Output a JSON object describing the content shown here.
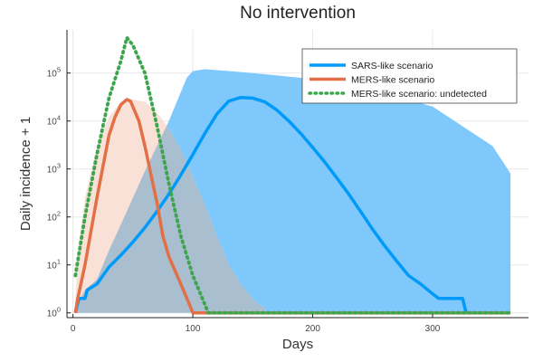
{
  "chart_data": {
    "type": "line",
    "title": "No intervention",
    "xlabel": "Days",
    "ylabel": "Daily incidence + 1",
    "xlim": [
      -5,
      380
    ],
    "ylim_log10": [
      -0.1,
      5.9
    ],
    "yscale": "log",
    "x_ticks": [
      0,
      100,
      200,
      300
    ],
    "x_tick_labels": [
      "0",
      "100",
      "200",
      "300"
    ],
    "y_ticks": [
      1,
      10,
      100,
      1000,
      10000,
      100000
    ],
    "y_tick_labels": [
      {
        "base": "10",
        "exp": "0"
      },
      {
        "base": "10",
        "exp": "1"
      },
      {
        "base": "10",
        "exp": "2"
      },
      {
        "base": "10",
        "exp": "3"
      },
      {
        "base": "10",
        "exp": "4"
      },
      {
        "base": "10",
        "exp": "5"
      }
    ],
    "grid": true,
    "legend_position": "top-right",
    "bands": [
      {
        "series": "SARS-like scenario",
        "color": "#7ec8fb",
        "upper": [
          [
            2,
            1.3
          ],
          [
            10,
            3
          ],
          [
            20,
            5
          ],
          [
            30,
            20
          ],
          [
            40,
            70
          ],
          [
            50,
            250
          ],
          [
            60,
            900
          ],
          [
            70,
            3000
          ],
          [
            80,
            10000
          ],
          [
            90,
            40000
          ],
          [
            95,
            80000
          ],
          [
            100,
            110000
          ],
          [
            110,
            120000
          ],
          [
            130,
            110000
          ],
          [
            150,
            100000
          ],
          [
            200,
            75000
          ],
          [
            250,
            45000
          ],
          [
            300,
            20000
          ],
          [
            350,
            3000
          ],
          [
            365,
            800
          ]
        ],
        "lower": [
          [
            2,
            1
          ],
          [
            365,
            1
          ]
        ]
      },
      {
        "series": "MERS-like scenario",
        "color": "#fae1d8",
        "upper": [
          [
            2,
            2
          ],
          [
            5,
            30
          ],
          [
            10,
            250
          ],
          [
            20,
            3000
          ],
          [
            30,
            12000
          ],
          [
            40,
            25000
          ],
          [
            50,
            28000
          ],
          [
            60,
            25000
          ],
          [
            70,
            15000
          ],
          [
            80,
            7000
          ],
          [
            90,
            2500
          ],
          [
            100,
            700
          ],
          [
            110,
            180
          ],
          [
            120,
            40
          ],
          [
            130,
            10
          ],
          [
            140,
            4
          ],
          [
            150,
            2
          ],
          [
            155,
            1.5
          ],
          [
            160,
            1.3
          ]
        ],
        "lower": [
          [
            2,
            1
          ],
          [
            160,
            1
          ]
        ]
      }
    ],
    "overlap_color": "#a9bfd0",
    "series": [
      {
        "name": "SARS-like scenario",
        "color": "#009af9",
        "style": "solid",
        "points": [
          [
            2,
            1
          ],
          [
            5,
            2
          ],
          [
            10,
            2
          ],
          [
            12,
            3
          ],
          [
            20,
            4
          ],
          [
            25,
            6
          ],
          [
            30,
            9
          ],
          [
            40,
            16
          ],
          [
            50,
            30
          ],
          [
            60,
            60
          ],
          [
            70,
            130
          ],
          [
            80,
            300
          ],
          [
            90,
            750
          ],
          [
            100,
            2000
          ],
          [
            110,
            5500
          ],
          [
            120,
            14000
          ],
          [
            130,
            26000
          ],
          [
            140,
            31000
          ],
          [
            150,
            30000
          ],
          [
            160,
            25000
          ],
          [
            170,
            17000
          ],
          [
            180,
            10000
          ],
          [
            190,
            5500
          ],
          [
            200,
            2800
          ],
          [
            210,
            1400
          ],
          [
            220,
            650
          ],
          [
            230,
            300
          ],
          [
            240,
            130
          ],
          [
            250,
            55
          ],
          [
            260,
            25
          ],
          [
            270,
            12
          ],
          [
            280,
            6
          ],
          [
            290,
            4
          ],
          [
            300,
            2.5
          ],
          [
            305,
            2
          ],
          [
            320,
            2
          ],
          [
            325,
            2
          ],
          [
            328,
            1
          ],
          [
            365,
            1
          ]
        ]
      },
      {
        "name": "MERS-like scenario",
        "color": "#e26f46",
        "style": "solid",
        "points": [
          [
            2,
            1
          ],
          [
            4,
            2
          ],
          [
            10,
            10
          ],
          [
            20,
            250
          ],
          [
            30,
            5000
          ],
          [
            35,
            12000
          ],
          [
            40,
            22000
          ],
          [
            45,
            28000
          ],
          [
            48,
            26000
          ],
          [
            55,
            10000
          ],
          [
            60,
            3000
          ],
          [
            70,
            200
          ],
          [
            75,
            40
          ],
          [
            80,
            15
          ],
          [
            90,
            4
          ],
          [
            95,
            2
          ],
          [
            100,
            1
          ],
          [
            365,
            1
          ]
        ]
      },
      {
        "name": "MERS-like scenario: undetected",
        "color": "#3ea44e",
        "style": "dotted",
        "points": [
          [
            2,
            6
          ],
          [
            10,
            100
          ],
          [
            20,
            2000
          ],
          [
            30,
            30000
          ],
          [
            40,
            180000
          ],
          [
            45,
            550000
          ],
          [
            50,
            380000
          ],
          [
            60,
            100000
          ],
          [
            70,
            8000
          ],
          [
            80,
            500
          ],
          [
            90,
            40
          ],
          [
            100,
            6
          ],
          [
            110,
            1.5
          ],
          [
            113,
            1
          ],
          [
            365,
            1
          ]
        ]
      }
    ]
  }
}
